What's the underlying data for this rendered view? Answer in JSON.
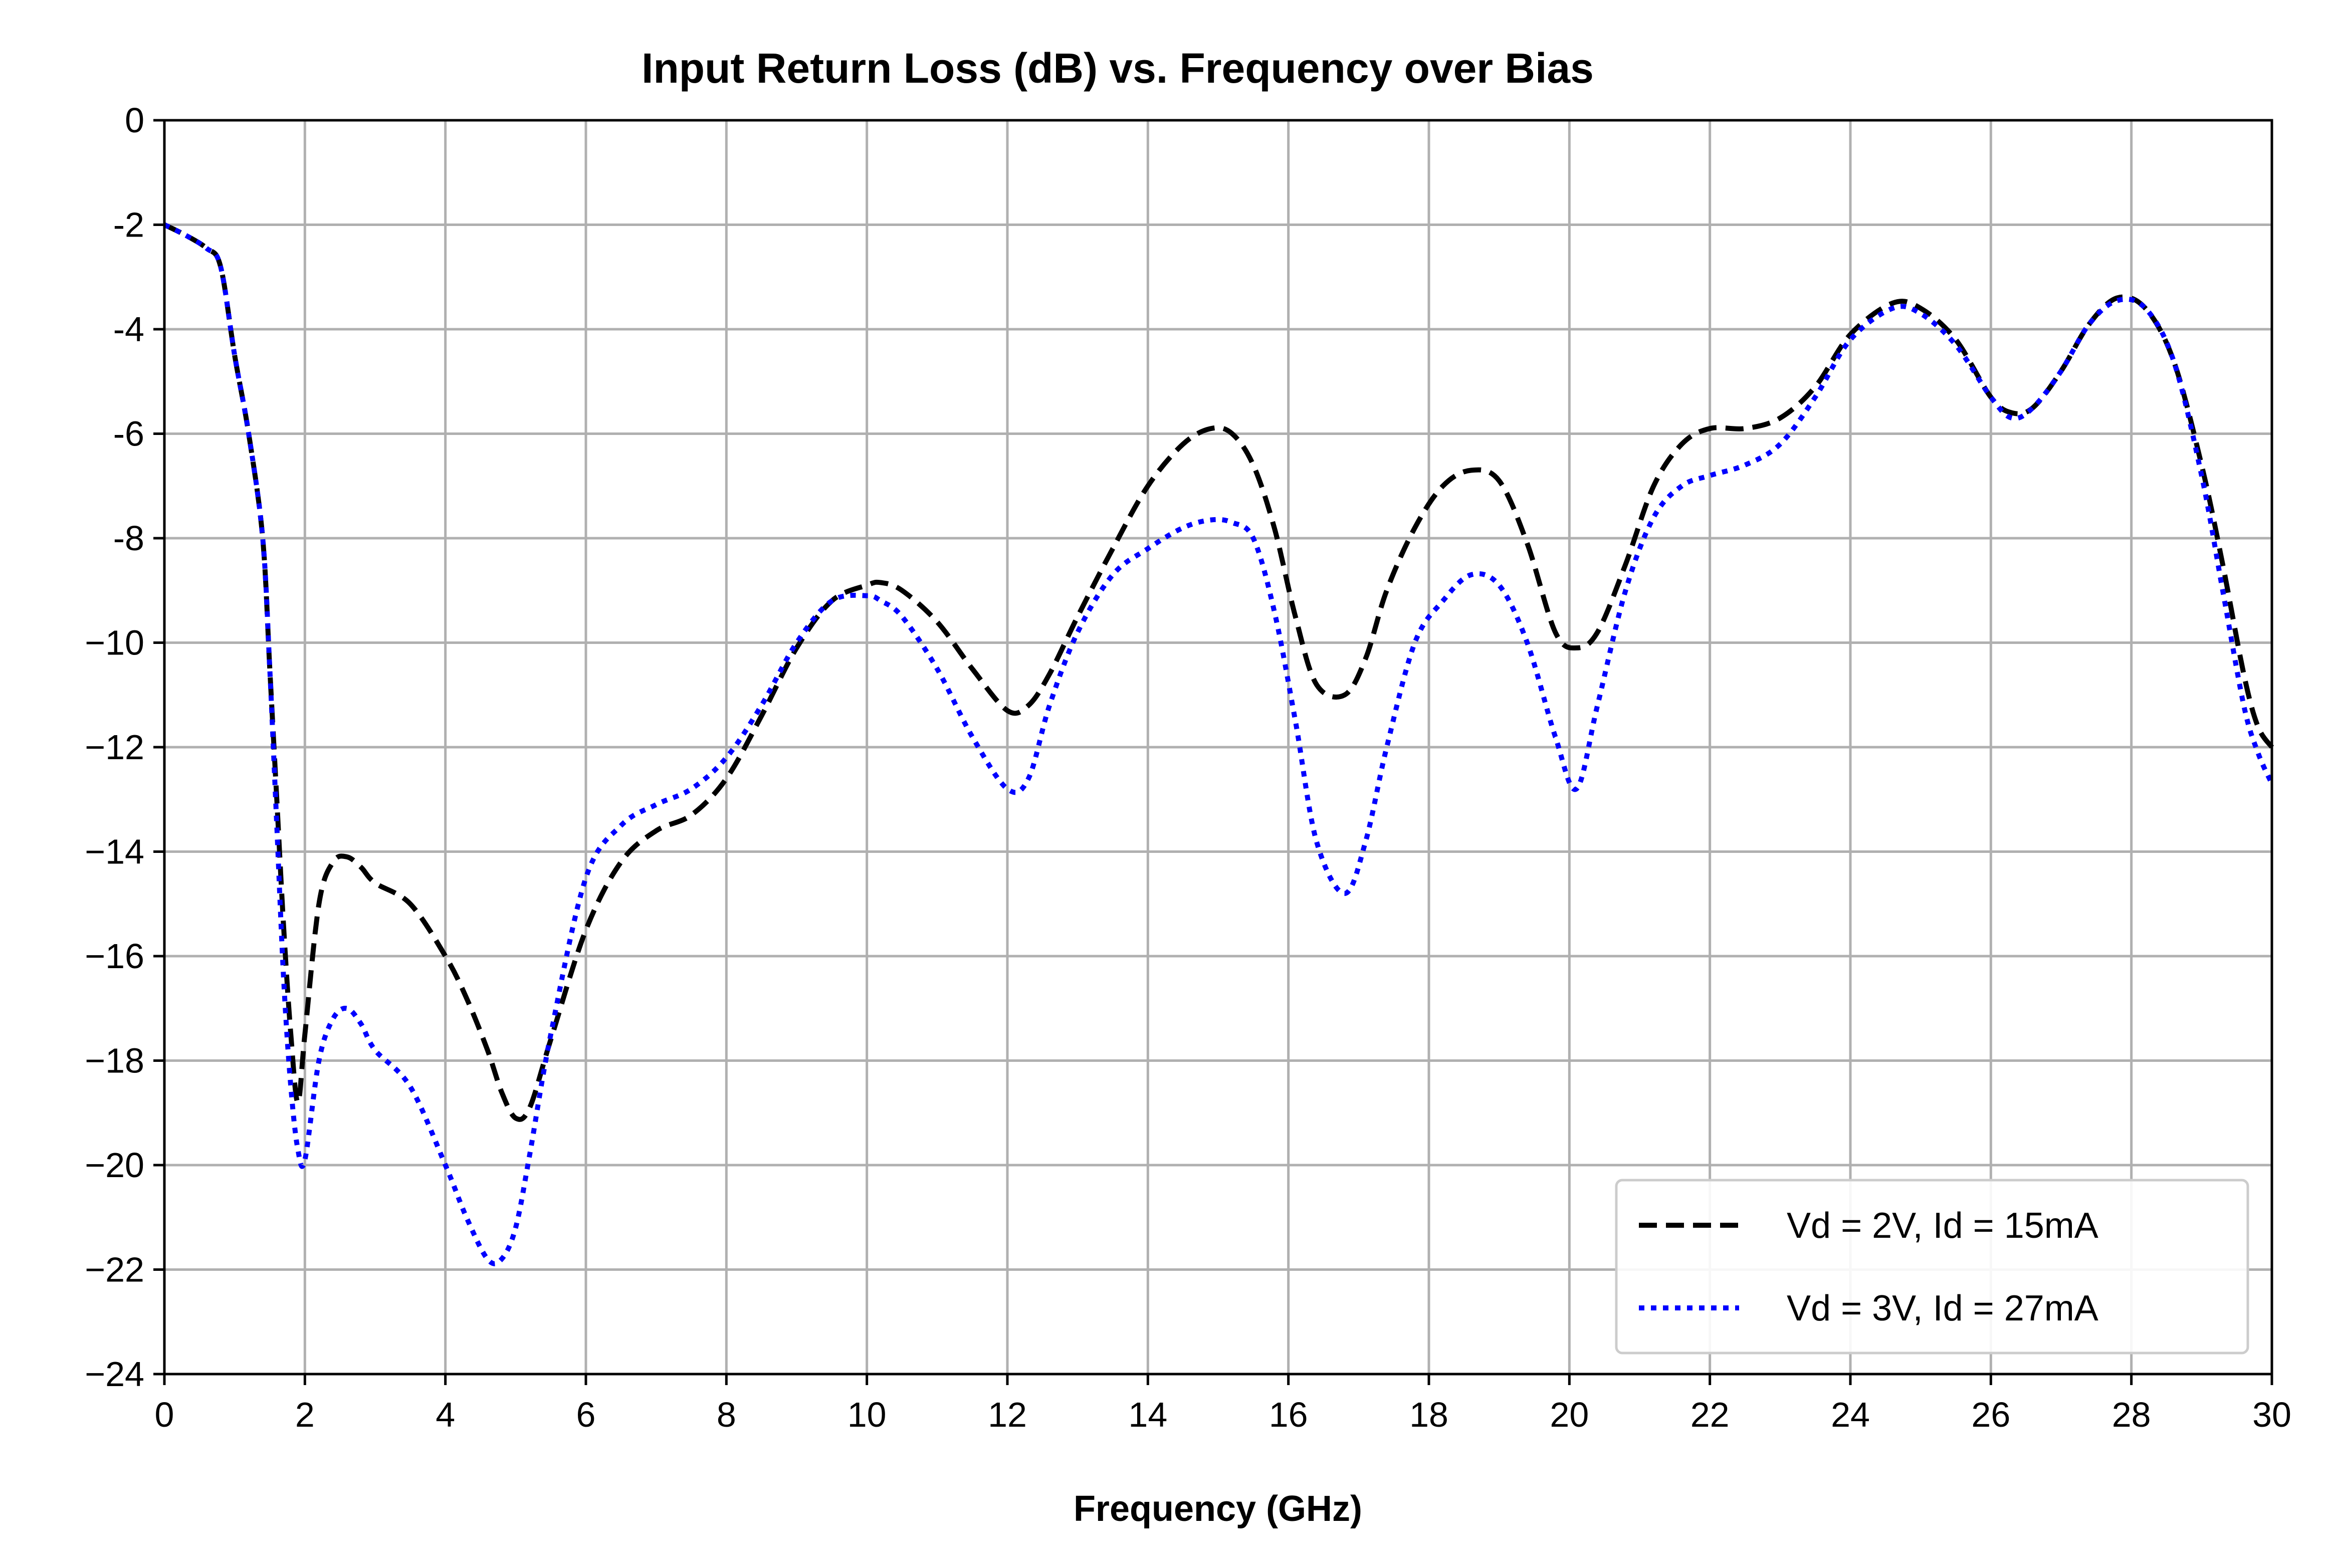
{
  "chart_data": {
    "type": "line",
    "title": "Input Return Loss (dB) vs. Frequency over Bias",
    "xlabel": "Frequency (GHz)",
    "ylabel": "",
    "xlim": [
      0,
      30
    ],
    "ylim": [
      -24,
      0
    ],
    "xticks": [
      0,
      2,
      4,
      6,
      8,
      10,
      12,
      14,
      16,
      18,
      20,
      22,
      24,
      26,
      28,
      30
    ],
    "yticks": [
      0,
      -2,
      -4,
      -6,
      -8,
      -10,
      -12,
      -14,
      -16,
      -18,
      -20,
      -22,
      -24
    ],
    "xtick_labels": [
      "0",
      "2",
      "4",
      "6",
      "8",
      "10",
      "12",
      "14",
      "16",
      "18",
      "20",
      "22",
      "24",
      "26",
      "28",
      "30"
    ],
    "ytick_labels": [
      "0",
      "-2",
      "-4",
      "-6",
      "-8",
      "−10",
      "−12",
      "−14",
      "−16",
      "−18",
      "−20",
      "−22",
      "−24"
    ],
    "grid": true,
    "legend_position": "lower-right",
    "series": [
      {
        "name": "Vd = 2V, Id = 15mA",
        "color": "#000000",
        "dash": "dashed",
        "x": [
          0,
          0.3,
          0.6,
          0.8,
          1.0,
          1.2,
          1.4,
          1.5,
          1.6,
          1.7,
          1.8,
          1.9,
          2.0,
          2.2,
          2.4,
          2.6,
          2.8,
          3.0,
          3.5,
          4.0,
          4.3,
          4.6,
          4.8,
          5.0,
          5.2,
          5.5,
          6.0,
          6.5,
          7.0,
          7.5,
          8.0,
          8.5,
          9.0,
          9.5,
          10.0,
          10.2,
          10.5,
          11.0,
          11.5,
          12.0,
          12.3,
          12.6,
          13.0,
          13.5,
          14.0,
          14.5,
          14.9,
          15.2,
          15.5,
          15.8,
          16.1,
          16.4,
          16.8,
          17.1,
          17.4,
          17.8,
          18.2,
          18.6,
          19.0,
          19.4,
          19.8,
          20.1,
          20.4,
          20.8,
          21.2,
          21.6,
          22.0,
          22.5,
          23.0,
          23.5,
          24.0,
          24.6,
          25.0,
          25.5,
          26.0,
          26.3,
          26.6,
          27.0,
          27.4,
          27.8,
          28.2,
          28.6,
          29.0,
          29.3,
          29.6,
          29.8,
          30.0
        ],
        "y": [
          -2.0,
          -2.2,
          -2.45,
          -2.8,
          -4.5,
          -6.0,
          -8.0,
          -10.5,
          -13.0,
          -15.5,
          -17.5,
          -18.8,
          -17.5,
          -15.0,
          -14.2,
          -14.1,
          -14.3,
          -14.6,
          -15.0,
          -16.0,
          -16.8,
          -17.8,
          -18.6,
          -19.1,
          -18.9,
          -17.6,
          -15.5,
          -14.2,
          -13.6,
          -13.3,
          -12.6,
          -11.4,
          -10.1,
          -9.2,
          -8.9,
          -8.85,
          -9.0,
          -9.6,
          -10.5,
          -11.3,
          -11.2,
          -10.6,
          -9.5,
          -8.2,
          -7.0,
          -6.2,
          -5.9,
          -6.0,
          -6.6,
          -7.8,
          -9.5,
          -10.8,
          -11.0,
          -10.3,
          -9.0,
          -7.8,
          -7.0,
          -6.7,
          -6.9,
          -8.1,
          -9.8,
          -10.1,
          -9.8,
          -8.5,
          -7.0,
          -6.2,
          -5.9,
          -5.9,
          -5.7,
          -5.1,
          -4.1,
          -3.5,
          -3.6,
          -4.2,
          -5.3,
          -5.6,
          -5.5,
          -4.8,
          -3.9,
          -3.4,
          -3.6,
          -4.6,
          -6.6,
          -8.5,
          -10.6,
          -11.6,
          -12.0
        ]
      },
      {
        "name": "Vd = 3V, Id = 27mA",
        "color": "#0000ff",
        "dash": "dotted",
        "x": [
          0,
          0.3,
          0.6,
          0.8,
          1.0,
          1.2,
          1.4,
          1.5,
          1.6,
          1.7,
          1.8,
          1.9,
          2.0,
          2.2,
          2.4,
          2.6,
          2.8,
          3.0,
          3.5,
          4.0,
          4.3,
          4.6,
          4.8,
          5.0,
          5.2,
          5.5,
          6.0,
          6.5,
          7.0,
          7.5,
          8.0,
          8.5,
          9.0,
          9.5,
          10.0,
          10.2,
          10.5,
          11.0,
          11.5,
          12.0,
          12.3,
          12.6,
          13.0,
          13.5,
          14.0,
          14.5,
          14.9,
          15.2,
          15.5,
          15.8,
          16.1,
          16.4,
          16.8,
          17.1,
          17.4,
          17.8,
          18.2,
          18.6,
          19.0,
          19.4,
          19.8,
          20.1,
          20.4,
          20.8,
          21.2,
          21.6,
          22.0,
          22.5,
          23.0,
          23.5,
          24.0,
          24.6,
          25.0,
          25.5,
          26.0,
          26.3,
          26.6,
          27.0,
          27.4,
          27.8,
          28.2,
          28.6,
          29.0,
          29.3,
          29.6,
          29.8,
          30.0
        ],
        "y": [
          -2.0,
          -2.2,
          -2.45,
          -2.8,
          -4.5,
          -6.0,
          -8.0,
          -10.5,
          -13.5,
          -16.5,
          -18.5,
          -19.7,
          -19.9,
          -18.0,
          -17.2,
          -17.0,
          -17.3,
          -17.8,
          -18.5,
          -20.0,
          -21.0,
          -21.8,
          -21.8,
          -21.2,
          -19.8,
          -17.5,
          -14.5,
          -13.5,
          -13.1,
          -12.8,
          -12.2,
          -11.2,
          -10.0,
          -9.2,
          -9.1,
          -9.2,
          -9.5,
          -10.5,
          -11.8,
          -12.8,
          -12.6,
          -11.2,
          -9.8,
          -8.7,
          -8.2,
          -7.8,
          -7.65,
          -7.7,
          -8.0,
          -9.4,
          -11.5,
          -13.8,
          -14.8,
          -13.8,
          -12.0,
          -10.0,
          -9.2,
          -8.7,
          -8.9,
          -10.0,
          -11.8,
          -12.8,
          -11.2,
          -9.0,
          -7.6,
          -7.0,
          -6.8,
          -6.6,
          -6.2,
          -5.3,
          -4.2,
          -3.6,
          -3.7,
          -4.3,
          -5.3,
          -5.7,
          -5.5,
          -4.8,
          -3.9,
          -3.45,
          -3.6,
          -4.6,
          -6.8,
          -9.0,
          -11.2,
          -12.1,
          -12.7
        ]
      }
    ]
  }
}
